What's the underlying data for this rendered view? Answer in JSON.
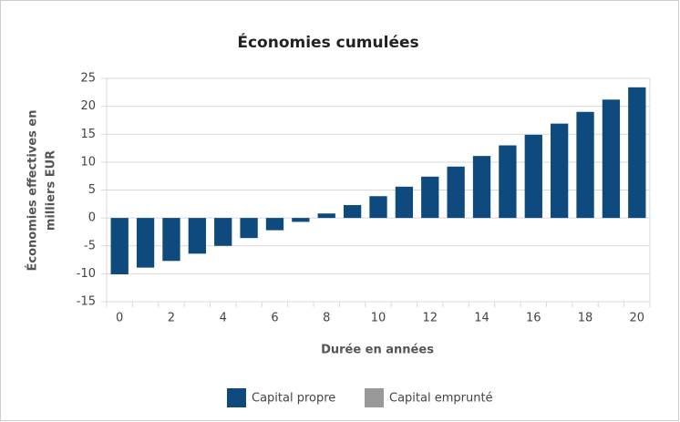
{
  "chart_data": {
    "type": "bar",
    "title": "Économies cumulées",
    "xlabel": "Durée en années",
    "ylabel": [
      "Économies effectives en",
      "milliers EUR"
    ],
    "categories": [
      0,
      null,
      2,
      null,
      4,
      null,
      6,
      null,
      8,
      null,
      10,
      null,
      12,
      null,
      14,
      null,
      16,
      null,
      18,
      null,
      20
    ],
    "series": [
      {
        "name": "Capital propre",
        "color": "#0e4a7e",
        "values": [
          -10.1,
          -8.9,
          -7.7,
          -6.4,
          -5.0,
          -3.6,
          -2.2,
          -0.7,
          0.8,
          2.3,
          3.9,
          5.6,
          7.4,
          9.2,
          11.1,
          13.0,
          14.9,
          16.9,
          19.0,
          21.2,
          23.4
        ]
      },
      {
        "name": "Capital emprunté",
        "color": "#999999",
        "values": [
          null,
          null,
          null,
          null,
          null,
          null,
          null,
          null,
          null,
          null,
          null,
          null,
          null,
          null,
          null,
          null,
          null,
          null,
          null,
          null,
          null
        ]
      }
    ],
    "ylim": [
      -15,
      25
    ],
    "yticks": [
      -15,
      -10,
      -5,
      0,
      5,
      10,
      15,
      20,
      25
    ],
    "grid": true,
    "legend": "bottom"
  }
}
